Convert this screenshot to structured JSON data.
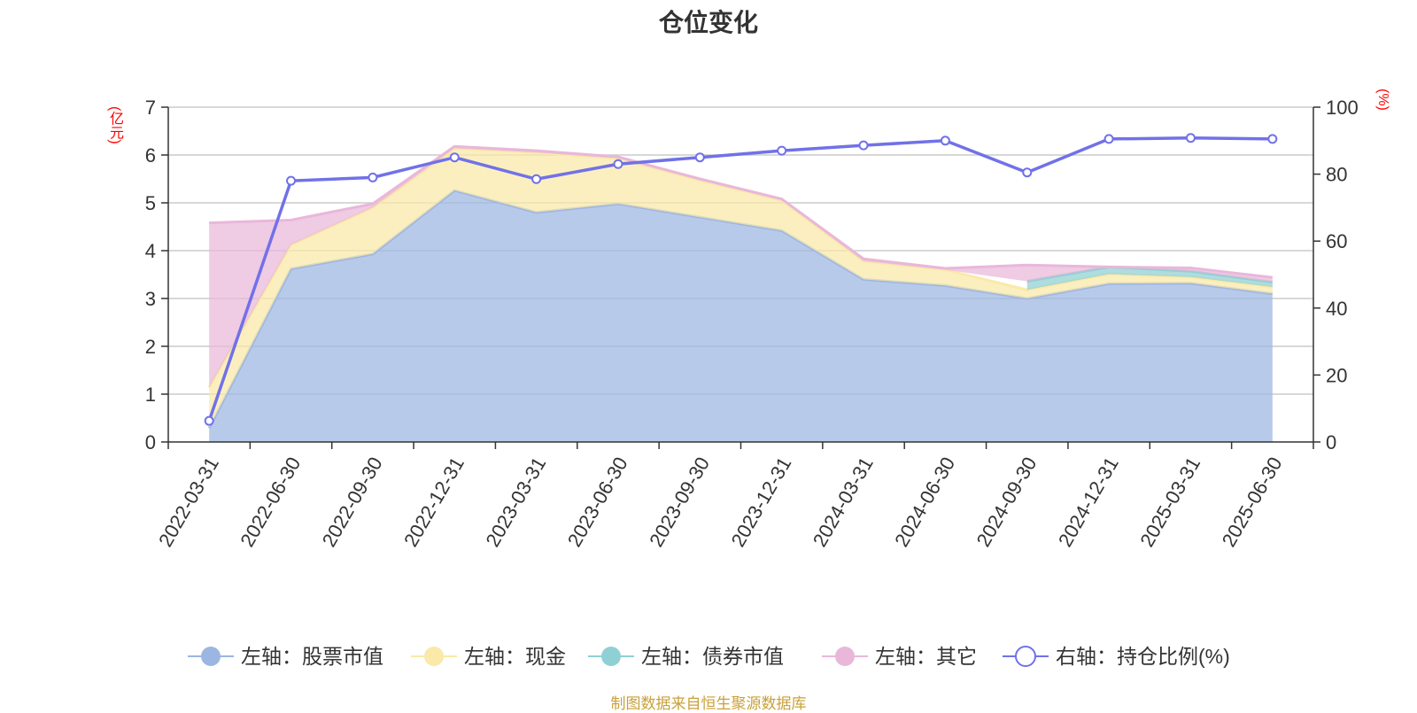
{
  "title": "仓位变化",
  "left_axis_unit": "(亿元)",
  "right_axis_unit": "(%)",
  "source_note": "制图数据来自恒生聚源数据库",
  "chart_data": {
    "type": "area",
    "title": "仓位变化",
    "categories": [
      "2022-03-31",
      "2022-06-30",
      "2022-09-30",
      "2022-12-31",
      "2023-03-31",
      "2023-06-30",
      "2023-09-30",
      "2023-12-31",
      "2024-03-31",
      "2024-06-30",
      "2024-09-30",
      "2024-12-31",
      "2025-03-31",
      "2025-06-30"
    ],
    "y_left": {
      "min": 0,
      "max": 7,
      "ticks": [
        0,
        1,
        2,
        3,
        4,
        5,
        6,
        7
      ],
      "unit": "(亿元)"
    },
    "y_right": {
      "min": 0,
      "max": 100,
      "ticks": [
        0,
        20,
        40,
        60,
        80,
        100
      ],
      "unit": "(%)"
    },
    "grid": true,
    "legend_position": "bottom",
    "series": [
      {
        "name": "左轴：股票市值",
        "type": "stacked-area",
        "axis": "left",
        "color": "#9cb6e2",
        "values": [
          0.29,
          3.62,
          3.93,
          5.26,
          4.8,
          4.98,
          4.7,
          4.42,
          3.4,
          3.27,
          3.0,
          3.31,
          3.32,
          3.1
        ]
      },
      {
        "name": "左轴：现金",
        "type": "stacked-area",
        "axis": "left",
        "color": "#fae9a8",
        "values": [
          0.85,
          0.5,
          0.97,
          0.88,
          1.25,
          0.95,
          0.77,
          0.63,
          0.38,
          0.33,
          0.18,
          0.2,
          0.13,
          0.14
        ]
      },
      {
        "name": "左轴：债券市值",
        "type": "stacked-area",
        "axis": "left",
        "color": "#8fd0d4",
        "values": [
          null,
          null,
          null,
          null,
          null,
          null,
          null,
          null,
          null,
          null,
          0.18,
          0.15,
          0.12,
          0.1
        ]
      },
      {
        "name": "左轴：其它",
        "type": "stacked-area",
        "axis": "left",
        "color": "#e9b7da",
        "values": [
          3.44,
          0.52,
          0.08,
          0.04,
          0.04,
          0.03,
          0.03,
          0.03,
          0.05,
          0.03,
          0.34,
          0.0,
          0.07,
          0.1
        ]
      },
      {
        "name": "右轴：持仓比例(%)",
        "type": "line",
        "axis": "right",
        "color": "#7171e8",
        "values": [
          6.3,
          78.0,
          79.0,
          85.0,
          78.5,
          83.0,
          85.0,
          87.0,
          88.6,
          90.0,
          80.5,
          90.5,
          90.8,
          90.5
        ]
      }
    ]
  }
}
